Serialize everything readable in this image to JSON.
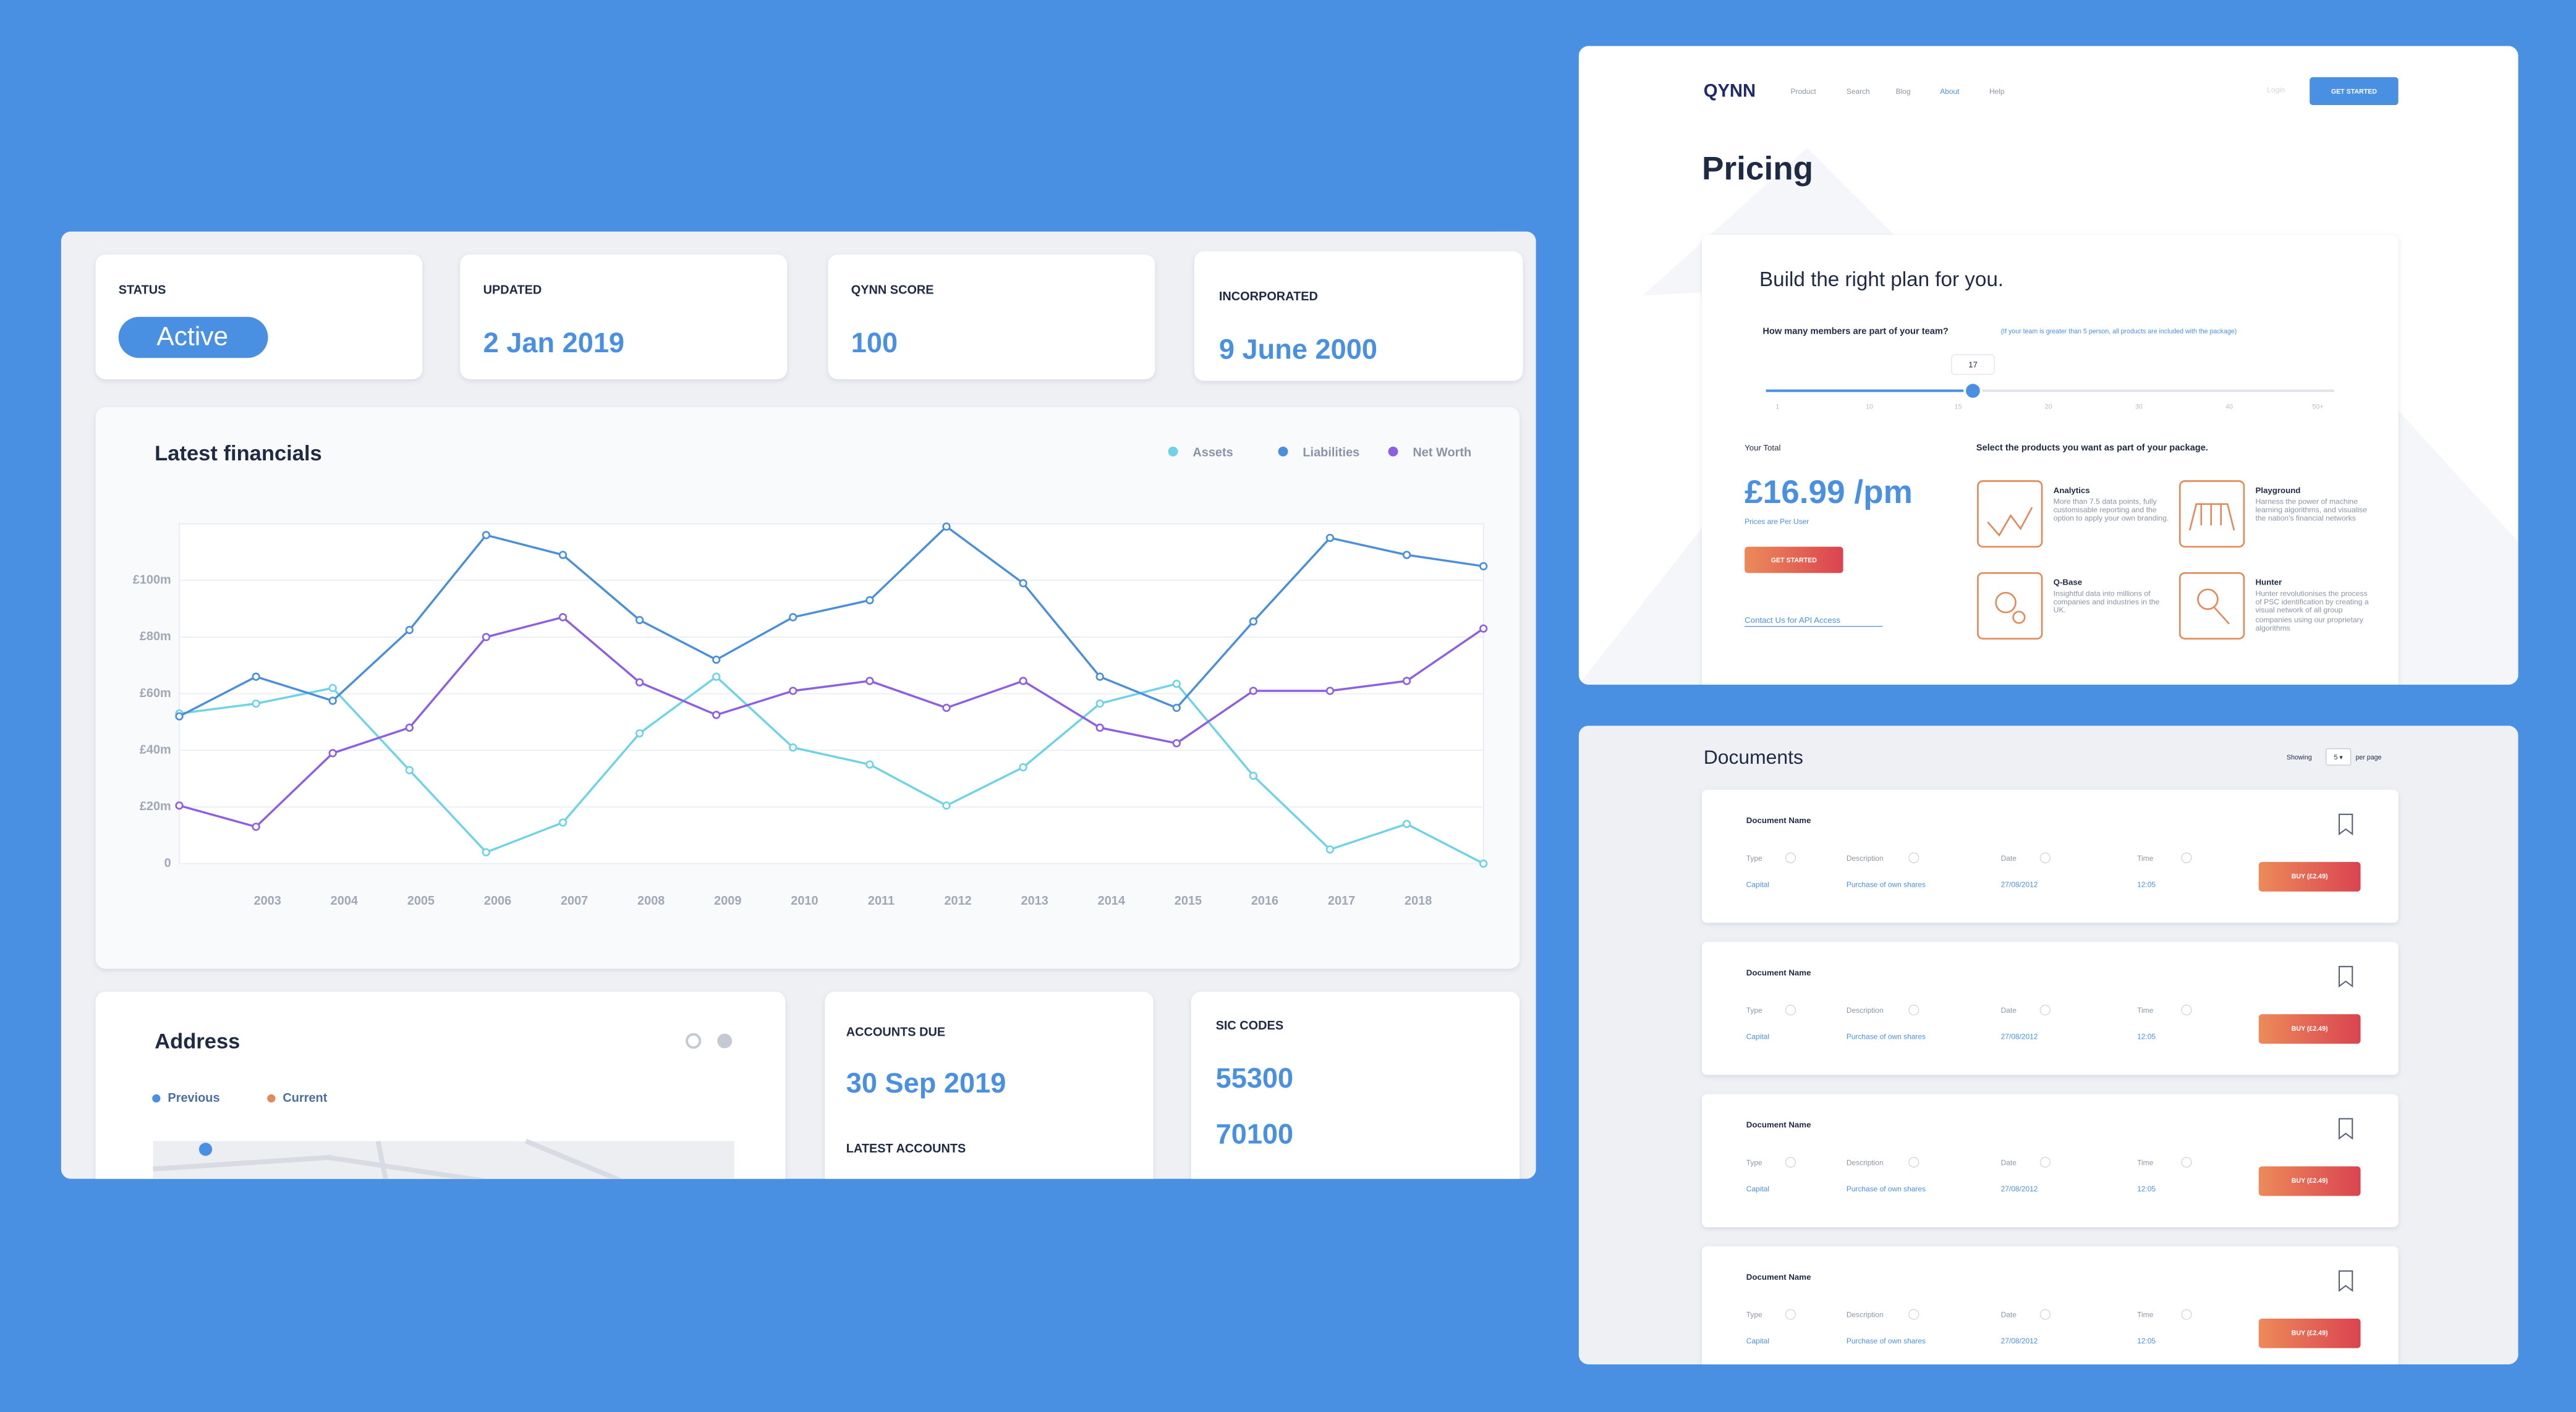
{
  "dashboard": {
    "status": {
      "label": "STATUS",
      "value": "Active"
    },
    "updated": {
      "label": "UPDATED",
      "value": "2 Jan 2019"
    },
    "score": {
      "label": "QYNN SCORE",
      "value": "100"
    },
    "incorporated": {
      "label": "INCORPORATED",
      "value": "9 June 2000"
    },
    "address": {
      "title": "Address",
      "legend": [
        "Previous",
        "Current"
      ]
    },
    "accounts": {
      "label": "ACCOUNTS DUE",
      "value": "30 Sep 2019",
      "latest_label": "LATEST ACCOUNTS"
    },
    "sic": {
      "label": "SIC CODES",
      "codes": [
        "55300",
        "70100"
      ]
    }
  },
  "chart_data": {
    "type": "line",
    "title": "Latest financials",
    "categories": [
      null,
      "2003",
      "2004",
      "2005",
      "2006",
      "2007",
      "2008",
      "2009",
      "2010",
      "2011",
      "2012",
      "2013",
      "2014",
      "2015",
      "2016",
      "2017",
      "2018",
      null
    ],
    "series": [
      {
        "name": "Assets",
        "color": "#6fd3e6",
        "values": [
          53,
          56.5,
          62,
          33,
          4,
          14.5,
          46,
          66,
          41,
          35,
          20.5,
          34,
          56.5,
          63.5,
          31,
          5,
          14,
          0
        ]
      },
      {
        "name": "Liabilities",
        "color": "#4a8fdc",
        "values": [
          52,
          66,
          57.5,
          82.5,
          116,
          109,
          86,
          72,
          87,
          93,
          119,
          99,
          66,
          55,
          85.5,
          115,
          109,
          105
        ]
      },
      {
        "name": "Net Worth",
        "color": "#8d5fe3",
        "values": [
          20.5,
          13,
          39,
          48,
          80,
          87,
          64,
          52.5,
          61,
          64.5,
          55,
          64.5,
          48,
          42.5,
          61,
          61,
          64.5,
          83
        ]
      }
    ],
    "ylim": [
      0,
      120
    ],
    "yticks": [
      0,
      {
        "value": 20,
        "label": "£20m"
      },
      {
        "value": 40,
        "label": "£40m"
      },
      {
        "value": 60,
        "label": "£60m"
      },
      {
        "value": 80,
        "label": "£80m"
      },
      {
        "value": 100,
        "label": "£100m"
      }
    ],
    "grid": true
  },
  "pricing": {
    "logo": "QYNN",
    "nav": [
      "Product",
      "Search",
      "Blog",
      "About",
      "Help"
    ],
    "login": "Login",
    "header_button": "GET STARTED",
    "title": "Pricing",
    "card_title": "Build the right plan for you.",
    "question": "How many members are part of your team?",
    "question_note": "(If your team is greater than 5 person, all products are included with the package)",
    "slider_value": "17",
    "slider_ticks": [
      "1",
      "10",
      "15",
      "20",
      "30",
      "40",
      "50+"
    ],
    "total_label": "Your Total",
    "price": "£16.99 /pm",
    "price_note": "Prices are Per User",
    "button": "GET STARTED",
    "api_link": "Contact Us for API Access",
    "products_label": "Select the products you want as part of your package.",
    "products": [
      {
        "name": "Analytics",
        "description": "More than 7.5 data points, fully customisable reporting and the option to apply your own branding."
      },
      {
        "name": "Playground",
        "description": "Harness the power of machine learning algorithms, and visualise the nation's financial networks"
      },
      {
        "name": "Q-Base",
        "description": "Insightful data into millions of companies and industries in the UK."
      },
      {
        "name": "Hunter",
        "description": "Hunter revolutionises the process of PSC identification by creating a visual network of all group companies using our proprietary algorithms"
      }
    ]
  },
  "documents": {
    "title": "Documents",
    "showing": "Showing",
    "per_page_value": "5 ▾",
    "per_page": "per page",
    "rows": [
      {
        "name": "Document Name",
        "headers": [
          "Type",
          "Description",
          "Date",
          "Time"
        ],
        "values": [
          "Capital",
          "Purchase of own shares",
          "27/08/2012",
          "12:05"
        ],
        "button": "BUY (£2.49)"
      },
      {
        "name": "Document Name",
        "headers": [
          "Type",
          "Description",
          "Date",
          "Time"
        ],
        "values": [
          "Capital",
          "Purchase of own shares",
          "27/08/2012",
          "12:05"
        ],
        "button": "BUY (£2.49)"
      },
      {
        "name": "Document Name",
        "headers": [
          "Type",
          "Description",
          "Date",
          "Time"
        ],
        "values": [
          "Capital",
          "Purchase of own shares",
          "27/08/2012",
          "12:05"
        ],
        "button": "BUY (£2.49)"
      },
      {
        "name": "Document Name",
        "headers": [
          "Type",
          "Description",
          "Date",
          "Time"
        ],
        "values": [
          "Capital",
          "Purchase of own shares",
          "27/08/2012",
          "12:05"
        ],
        "button": "BUY (£2.49)"
      }
    ]
  }
}
